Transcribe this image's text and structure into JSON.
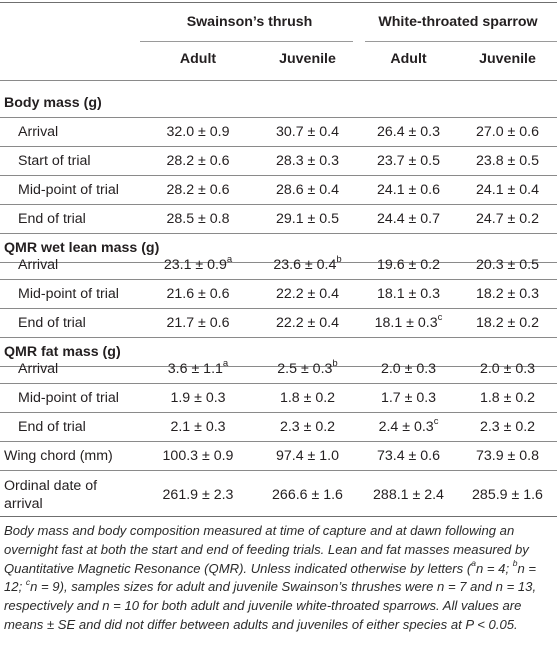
{
  "species": [
    {
      "name": "Swainson’s thrush",
      "cols": [
        "Adult",
        "Juvenile"
      ]
    },
    {
      "name": "White-throated sparrow",
      "cols": [
        "Adult",
        "Juvenile"
      ]
    }
  ],
  "sections": [
    {
      "title": "Body mass (g)",
      "rows": [
        {
          "label": "Arrival",
          "values": [
            "32.0 ± 0.9",
            "30.7 ± 0.4",
            "26.4 ± 0.3",
            "27.0 ± 0.6"
          ],
          "sups": [
            "",
            "",
            "",
            ""
          ]
        },
        {
          "label": "Start of trial",
          "values": [
            "28.2 ± 0.6",
            "28.3 ± 0.3",
            "23.7 ± 0.5",
            "23.8 ± 0.5"
          ],
          "sups": [
            "",
            "",
            "",
            ""
          ]
        },
        {
          "label": "Mid-point of trial",
          "values": [
            "28.2 ± 0.6",
            "28.6 ± 0.4",
            "24.1 ± 0.6",
            "24.1 ± 0.4"
          ],
          "sups": [
            "",
            "",
            "",
            ""
          ]
        },
        {
          "label": "End of trial",
          "values": [
            "28.5 ± 0.8",
            "29.1 ± 0.5",
            "24.4 ± 0.7",
            "24.7 ± 0.2"
          ],
          "sups": [
            "",
            "",
            "",
            ""
          ]
        }
      ]
    },
    {
      "title": "QMR wet lean mass (g)",
      "rows": [
        {
          "label": "Arrival",
          "values": [
            "23.1 ± 0.9",
            "23.6 ± 0.4",
            "19.6 ± 0.2",
            "20.3 ± 0.5"
          ],
          "sups": [
            "a",
            "b",
            "",
            ""
          ]
        },
        {
          "label": "Mid-point of trial",
          "values": [
            "21.6 ± 0.6",
            "22.2 ± 0.4",
            "18.1 ± 0.3",
            "18.2 ± 0.3"
          ],
          "sups": [
            "",
            "",
            "",
            ""
          ]
        },
        {
          "label": "End of trial",
          "values": [
            "21.7 ± 0.6",
            "22.2 ± 0.4",
            "18.1 ± 0.3",
            "18.2 ± 0.2"
          ],
          "sups": [
            "",
            "",
            "c",
            ""
          ]
        }
      ]
    },
    {
      "title": "QMR fat mass (g)",
      "rows": [
        {
          "label": "Arrival",
          "values": [
            "3.6 ± 1.1",
            "2.5 ± 0.3",
            "2.0 ± 0.3",
            "2.0 ± 0.3"
          ],
          "sups": [
            "a",
            "b",
            "",
            ""
          ]
        },
        {
          "label": "Mid-point of trial",
          "values": [
            "1.9 ± 0.3",
            "1.8 ± 0.2",
            "1.7 ± 0.3",
            "1.8 ± 0.2"
          ],
          "sups": [
            "",
            "",
            "",
            ""
          ]
        },
        {
          "label": "End of trial",
          "values": [
            "2.1 ± 0.3",
            "2.3 ± 0.2",
            "2.4 ± 0.3",
            "2.3 ± 0.2"
          ],
          "sups": [
            "",
            "",
            "c",
            ""
          ]
        }
      ]
    }
  ],
  "extra_rows": [
    {
      "label": [
        "Wing chord (mm)"
      ],
      "values": [
        "100.3 ± 0.9",
        "97.4 ± 1.0",
        "73.4 ± 0.6",
        "73.9 ± 0.8"
      ]
    },
    {
      "label": [
        "Ordinal date of",
        "arrival"
      ],
      "values": [
        "261.9 ± 2.3",
        "266.6 ± 1.6",
        "288.1 ± 2.4",
        "285.9 ± 1.6"
      ]
    }
  ],
  "footnote": {
    "part1": "Body mass and body composition measured at time of capture and at dawn following an overnight fast at both the start and end of feeding trials. Lean and fat masses measured by Quantitative Magnetic Resonance (QMR). Unless indicated otherwise by letters (",
    "sup_a": "a",
    "part2": "n = 4; ",
    "sup_b": "b",
    "part3": "n = 12; ",
    "sup_c": "c",
    "part4": "n = 9), samples sizes for adult and juvenile Swainson’s thrushes were n = 7 and n = 13, respectively and n = 10 for both adult and juvenile white-throated sparrows. All values are means ± SE and did not differ between adults and juveniles of either species at P < 0.05."
  }
}
